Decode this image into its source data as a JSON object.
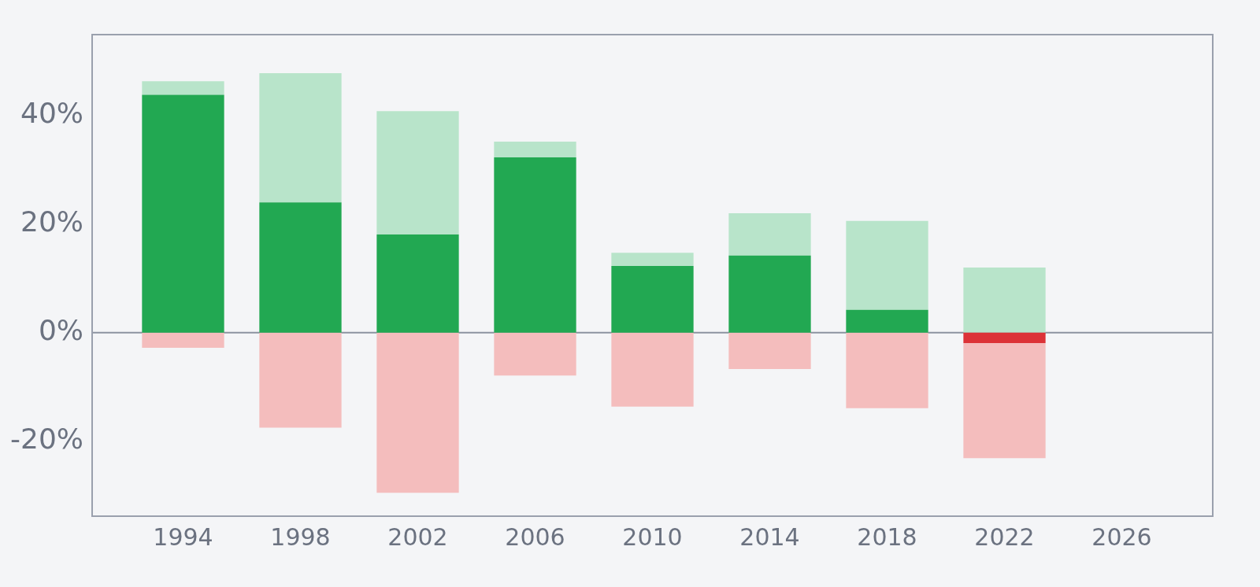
{
  "chart_data": {
    "type": "bar",
    "stacked": true,
    "x": [
      1994,
      1998,
      2002,
      2006,
      2010,
      2014,
      2018,
      2022
    ],
    "series": [
      {
        "color": "#22a852",
        "values": [
          43.8,
          24.0,
          18.1,
          32.3,
          12.3,
          14.2,
          4.2,
          null
        ]
      },
      {
        "color": "#dc3237",
        "values": [
          null,
          null,
          null,
          null,
          null,
          null,
          null,
          -1.9
        ]
      },
      {
        "color": "#b8e4ca",
        "values": [
          2.5,
          23.8,
          22.7,
          2.9,
          2.4,
          7.8,
          16.4,
          12.0
        ]
      },
      {
        "color": "#f4bdbd",
        "values": [
          -2.8,
          -17.5,
          -29.5,
          -7.9,
          -13.6,
          -6.7,
          -13.9,
          -21.2
        ]
      }
    ],
    "xlim": [
      1990.9,
      2029.1
    ],
    "xticks": [
      1994,
      1998,
      2002,
      2006,
      2010,
      2014,
      2018,
      2022,
      2026
    ],
    "ylim": [
      -33.8,
      54.9
    ],
    "yticks": [
      {
        "value": -20,
        "label": "-20%"
      },
      {
        "value": 0,
        "label": "0%"
      },
      {
        "value": 20,
        "label": "20%"
      },
      {
        "value": 40,
        "label": "40%"
      }
    ],
    "ref_lines": [
      {
        "axis": "y",
        "value": 0,
        "color": "#8c93a0"
      }
    ],
    "grid": false,
    "legend": false
  }
}
